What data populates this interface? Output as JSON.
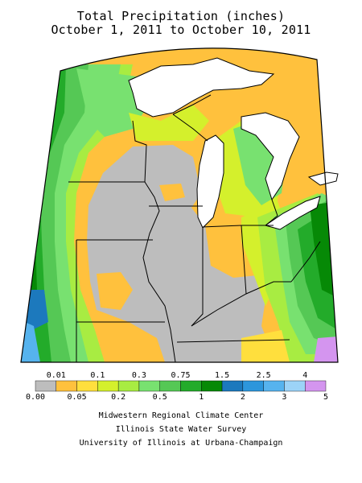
{
  "title": {
    "line1": "Total Precipitation (inches)",
    "line2": "October 1, 2011 to October 10, 2011"
  },
  "map": {
    "region": "Midwest",
    "colors": {
      "trace_0.01": "#bdbdbd",
      "0.01_0.05": "#ffc13d",
      "0.05_0.1": "#ffdf3d",
      "0.1_0.2": "#d4f02c",
      "0.2_0.3": "#a8ec42",
      "0.3_0.5": "#78e170",
      "0.5_0.75": "#55c855",
      "0.75_1": "#23ab2a",
      "1_1.5": "#068906",
      "1.5_2": "#1c79bd",
      "2_2.5": "#2c96dc",
      "2.5_3": "#56b3ee",
      "3_4": "#9cd3f7",
      "4_5": "#d495ef",
      "lakes": "#ffffff",
      "outline": "#000000"
    }
  },
  "legend": {
    "top_labels": [
      "0.01",
      "0.1",
      "0.3",
      "0.75",
      "1.5",
      "2.5",
      "4"
    ],
    "bottom_labels": [
      "0.00",
      "0.05",
      "0.2",
      "0.5",
      "1",
      "2",
      "3",
      "5"
    ],
    "colors": [
      "#bdbdbd",
      "#ffc13d",
      "#ffdf3d",
      "#d4f02c",
      "#a8ec42",
      "#78e170",
      "#55c855",
      "#23ab2a",
      "#068906",
      "#1c79bd",
      "#2c96dc",
      "#56b3ee",
      "#9cd3f7",
      "#d495ef"
    ]
  },
  "credits": {
    "line1": "Midwestern Regional Climate Center",
    "line2": "Illinois State Water Survey",
    "line3": "University of Illinois at Urbana-Champaign"
  }
}
